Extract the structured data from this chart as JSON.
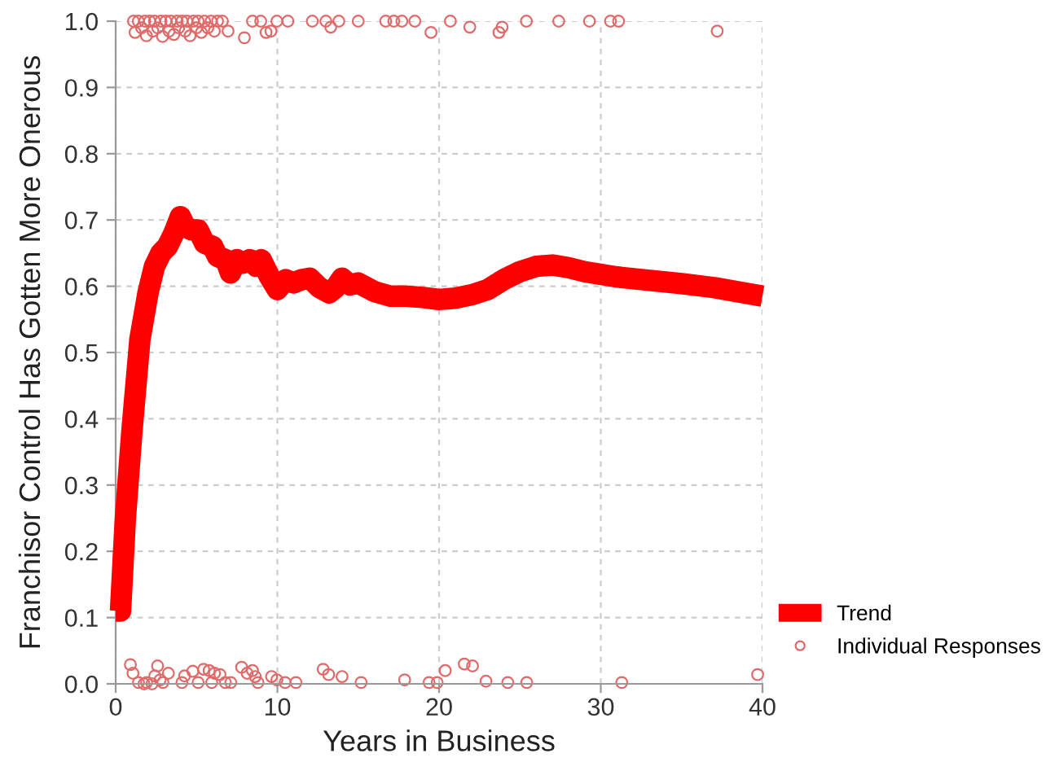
{
  "chart_data": {
    "type": "line",
    "xlabel": "Years in Business",
    "ylabel": "Franchisor Control Has Gotten More Onerous",
    "xlim": [
      0,
      40
    ],
    "xticks": [
      0,
      10,
      20,
      30,
      40
    ],
    "ylim": [
      0,
      1
    ],
    "yticks": [
      {
        "value": 0,
        "label": "0.0"
      },
      0.1,
      0.2,
      0.3,
      0.4,
      0.5,
      0.6,
      0.7,
      0.8,
      0.9,
      {
        "value": 1,
        "label": "1.0"
      }
    ],
    "grid": true,
    "legend": "bottom right",
    "series": [
      {
        "name": "Trend",
        "color": "#ff0000",
        "x": [
          0,
          0.3,
          0.6,
          1.0,
          1.5,
          2.0,
          2.4,
          2.8,
          3.2,
          3.6,
          4.0,
          4.3,
          4.7,
          5.1,
          5.5,
          6.0,
          6.3,
          6.8,
          7.1,
          7.5,
          7.9,
          8.3,
          8.7,
          9.0,
          9.5,
          10.0,
          10.5,
          11.0,
          11.5,
          12.0,
          12.6,
          13.2,
          13.6,
          14.0,
          14.5,
          15.0,
          16.0,
          17.0,
          18.0,
          19.0,
          20.0,
          21.0,
          22.0,
          23.0,
          24.0,
          25.0,
          26.0,
          27.0,
          28.0,
          29.0,
          31.0,
          33.0,
          35.0,
          37.0,
          40.0
        ],
        "values": [
          0.11,
          0.11,
          0.25,
          0.38,
          0.52,
          0.59,
          0.63,
          0.65,
          0.66,
          0.68,
          0.705,
          0.69,
          0.685,
          0.685,
          0.665,
          0.66,
          0.645,
          0.64,
          0.62,
          0.64,
          0.635,
          0.64,
          0.63,
          0.64,
          0.615,
          0.595,
          0.61,
          0.605,
          0.61,
          0.612,
          0.598,
          0.59,
          0.598,
          0.612,
          0.602,
          0.605,
          0.592,
          0.585,
          0.585,
          0.583,
          0.58,
          0.582,
          0.587,
          0.595,
          0.61,
          0.622,
          0.63,
          0.632,
          0.628,
          0.622,
          0.614,
          0.609,
          0.604,
          0.598,
          0.585
        ]
      },
      {
        "name": "Individual Responses",
        "type": "scatter",
        "color": "#e06a6a",
        "marker": "circle",
        "x": [
          1.1,
          1.2,
          1.4,
          1.6,
          1.8,
          1.9,
          2.1,
          2.3,
          2.4,
          2.6,
          2.8,
          2.9,
          3.1,
          3.3,
          3.4,
          3.6,
          3.8,
          3.9,
          4.1,
          4.3,
          4.4,
          4.6,
          4.8,
          5.0,
          5.1,
          5.3,
          5.5,
          5.7,
          5.9,
          6.1,
          6.3,
          6.6,
          6.95,
          7.96,
          8.46,
          8.97,
          9.3,
          9.6,
          9.97,
          10.65,
          12.16,
          13.0,
          13.3,
          13.8,
          15.0,
          16.7,
          17.2,
          17.7,
          18.5,
          19.5,
          20.7,
          21.9,
          23.7,
          23.9,
          25.4,
          27.4,
          29.3,
          30.6,
          31.1,
          37.2,
          0.91,
          1.07,
          1.41,
          1.75,
          1.91,
          2.25,
          2.42,
          2.59,
          2.75,
          2.92,
          3.26,
          4.1,
          4.26,
          4.77,
          5.1,
          5.44,
          5.78,
          5.94,
          6.11,
          6.45,
          6.78,
          7.12,
          7.79,
          8.13,
          8.46,
          8.63,
          8.8,
          9.64,
          9.97,
          10.48,
          11.15,
          12.83,
          13.17,
          14.0,
          15.18,
          17.87,
          19.38,
          19.88,
          20.38,
          21.56,
          22.07,
          22.9,
          24.25,
          25.42,
          31.3,
          39.7
        ],
        "values": [
          1.0,
          0.983,
          1.0,
          0.99,
          1.0,
          0.978,
          1.0,
          0.985,
          1.0,
          0.99,
          1.0,
          0.977,
          1.0,
          0.985,
          1.0,
          0.98,
          1.0,
          0.99,
          1.0,
          0.985,
          1.0,
          0.978,
          1.0,
          0.99,
          1.0,
          0.983,
          1.0,
          0.99,
          1.0,
          0.985,
          1.0,
          1.0,
          0.985,
          0.975,
          1.0,
          1.0,
          0.983,
          0.985,
          1.0,
          1.0,
          1.0,
          1.0,
          0.991,
          1.0,
          1.0,
          1.0,
          1.0,
          1.0,
          1.0,
          0.983,
          1.0,
          0.991,
          0.983,
          0.991,
          1.0,
          1.0,
          1.0,
          1.0,
          1.0,
          0.985,
          0.029,
          0.016,
          0.002,
          0.0,
          0.002,
          0.0,
          0.012,
          0.027,
          0.006,
          0.002,
          0.016,
          0.002,
          0.012,
          0.019,
          0.002,
          0.022,
          0.02,
          0.002,
          0.016,
          0.014,
          0.002,
          0.002,
          0.025,
          0.016,
          0.02,
          0.011,
          0.002,
          0.011,
          0.006,
          0.002,
          0.002,
          0.022,
          0.014,
          0.011,
          0.002,
          0.006,
          0.002,
          0.002,
          0.02,
          0.03,
          0.027,
          0.004,
          0.002,
          0.002,
          0.002,
          0.014
        ]
      }
    ]
  }
}
